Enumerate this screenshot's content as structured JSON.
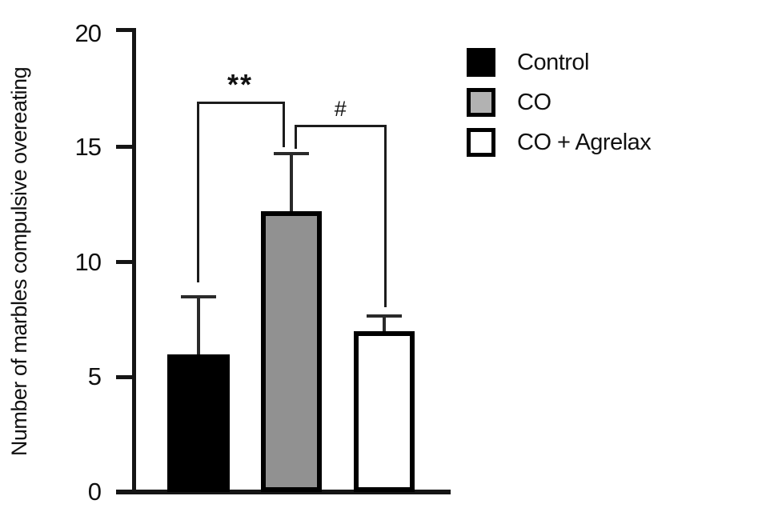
{
  "figure": {
    "background_color": "#ffffff",
    "axis_color": "#151515"
  },
  "chart_data": {
    "type": "bar",
    "title": "",
    "xlabel": "",
    "ylabel": "Number of marbles compulsive overeating",
    "ylim": [
      0,
      20
    ],
    "yticks": [
      0,
      5,
      10,
      15,
      20
    ],
    "grid": false,
    "categories": [
      "Control",
      "CO",
      "CO + Agrelax"
    ],
    "values": [
      6.0,
      12.2,
      7.0
    ],
    "errors_upper": [
      2.5,
      2.5,
      0.65
    ],
    "bar_colors": [
      "#000000",
      "#919191",
      "#ffffff"
    ],
    "bar_edge_color": "#000000",
    "annotations": [
      {
        "label": "**",
        "between": [
          "Control",
          "CO"
        ]
      },
      {
        "label": "#",
        "between": [
          "CO",
          "CO + Agrelax"
        ]
      }
    ],
    "legend": {
      "position": "top-right",
      "entries": [
        {
          "label": "Control",
          "swatch_color": "#000000"
        },
        {
          "label": "CO",
          "swatch_color": "#b2b2b2"
        },
        {
          "label": "CO + Agrelax",
          "swatch_color": "#ffffff"
        }
      ]
    }
  }
}
